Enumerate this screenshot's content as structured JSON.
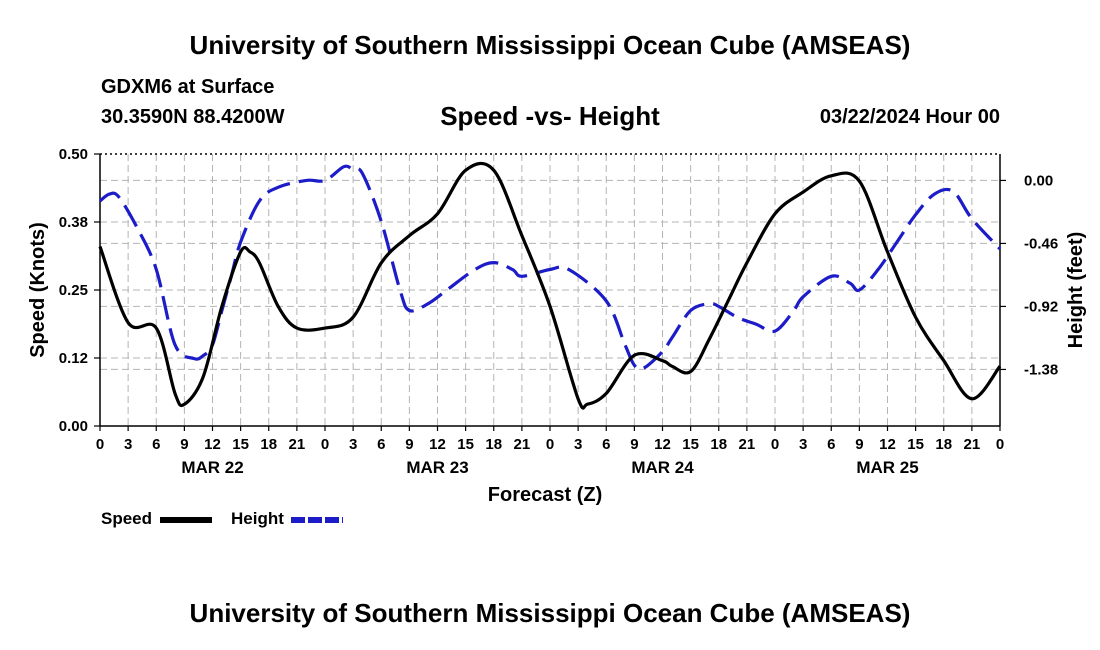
{
  "header": {
    "title": "University of Southern Mississippi Ocean Cube (AMSEAS)",
    "model": "GDXM6 at Surface",
    "coords": "30.3590N  88.4200W",
    "subtitle": "Speed -vs- Height",
    "date": "03/22/2024 Hour 00"
  },
  "footer": {
    "title": "University of Southern Mississippi Ocean Cube (AMSEAS)"
  },
  "legend": {
    "speed_label": "Speed",
    "height_label": "Height",
    "speed_color": "#000000",
    "height_color": "#1c1cc8"
  },
  "chart_data": {
    "type": "line",
    "title": "Speed -vs- Height",
    "xlabel": "Forecast (Z)",
    "ylabel": "Speed (Knots)",
    "y2label": "Height (feet)",
    "xlim": [
      0,
      96
    ],
    "ylim": [
      0,
      0.5
    ],
    "y2lim": [
      -1.793,
      0.193
    ],
    "x_ticks": [
      0,
      3,
      6,
      9,
      12,
      15,
      18,
      21,
      24,
      27,
      30,
      33,
      36,
      39,
      42,
      45,
      48,
      51,
      54,
      57,
      60,
      63,
      66,
      69,
      72,
      75,
      78,
      81,
      84,
      87,
      90,
      93,
      96
    ],
    "x_tick_labels": [
      "0",
      "3",
      "6",
      "9",
      "12",
      "15",
      "18",
      "21",
      "0",
      "3",
      "6",
      "9",
      "12",
      "15",
      "18",
      "21",
      "0",
      "3",
      "6",
      "9",
      "12",
      "15",
      "18",
      "21",
      "0",
      "3",
      "6",
      "9",
      "12",
      "15",
      "18",
      "21",
      "0"
    ],
    "day_labels": [
      {
        "x": 12,
        "label": "MAR 22"
      },
      {
        "x": 36,
        "label": "MAR 23"
      },
      {
        "x": 60,
        "label": "MAR 24"
      },
      {
        "x": 84,
        "label": "MAR 25"
      }
    ],
    "y_ticks": [
      0,
      0.125,
      0.25,
      0.375,
      0.5
    ],
    "y_tick_labels": [
      "0.00",
      "0.12",
      "0.25",
      "0.38",
      "0.50"
    ],
    "y2_ticks": [
      0.0,
      -0.46,
      -0.92,
      -1.38
    ],
    "y2_tick_labels": [
      "0.00",
      "-0.46",
      "-0.92",
      "-1.38"
    ],
    "grid": true,
    "series": [
      {
        "name": "Speed",
        "axis": "left",
        "color": "#000000",
        "dash": "solid",
        "x": [
          0,
          3,
          6,
          8,
          9,
          11,
          13,
          15,
          16,
          17,
          19,
          21,
          24,
          27,
          30,
          33,
          36,
          39,
          42,
          45,
          48,
          51,
          52,
          54,
          57,
          60,
          61,
          63,
          65,
          67,
          69,
          72,
          75,
          78,
          81,
          84,
          87,
          90,
          93,
          96
        ],
        "values": [
          0.33,
          0.19,
          0.18,
          0.06,
          0.04,
          0.09,
          0.22,
          0.32,
          0.32,
          0.3,
          0.22,
          0.18,
          0.18,
          0.2,
          0.3,
          0.35,
          0.39,
          0.47,
          0.47,
          0.35,
          0.22,
          0.05,
          0.04,
          0.06,
          0.13,
          0.12,
          0.11,
          0.1,
          0.16,
          0.23,
          0.3,
          0.39,
          0.43,
          0.46,
          0.45,
          0.32,
          0.2,
          0.12,
          0.05,
          0.11
        ]
      },
      {
        "name": "Height",
        "axis": "right",
        "color": "#1c1cc8",
        "dash": "dashed",
        "x": [
          0,
          1,
          2,
          4,
          6,
          8,
          10,
          11,
          12,
          13,
          14,
          15,
          17,
          19,
          22,
          24,
          26,
          27,
          28,
          30,
          32,
          33,
          35,
          37,
          40,
          42,
          44,
          45,
          48,
          50,
          54,
          56,
          57,
          58,
          60,
          61,
          63,
          65,
          66,
          68,
          70,
          72,
          74,
          75,
          78,
          80,
          81,
          83,
          85,
          87,
          89,
          91,
          93,
          96
        ],
        "values": [
          -0.15,
          -0.1,
          -0.12,
          -0.35,
          -0.65,
          -1.2,
          -1.3,
          -1.28,
          -1.2,
          -0.95,
          -0.7,
          -0.45,
          -0.15,
          -0.05,
          0.0,
          0.0,
          0.1,
          0.08,
          0.05,
          -0.3,
          -0.8,
          -0.95,
          -0.9,
          -0.8,
          -0.65,
          -0.6,
          -0.65,
          -0.7,
          -0.65,
          -0.65,
          -0.88,
          -1.2,
          -1.35,
          -1.37,
          -1.25,
          -1.15,
          -0.95,
          -0.9,
          -0.92,
          -1.0,
          -1.05,
          -1.1,
          -0.95,
          -0.85,
          -0.7,
          -0.75,
          -0.8,
          -0.65,
          -0.45,
          -0.25,
          -0.1,
          -0.08,
          -0.28,
          -0.5
        ]
      }
    ]
  }
}
